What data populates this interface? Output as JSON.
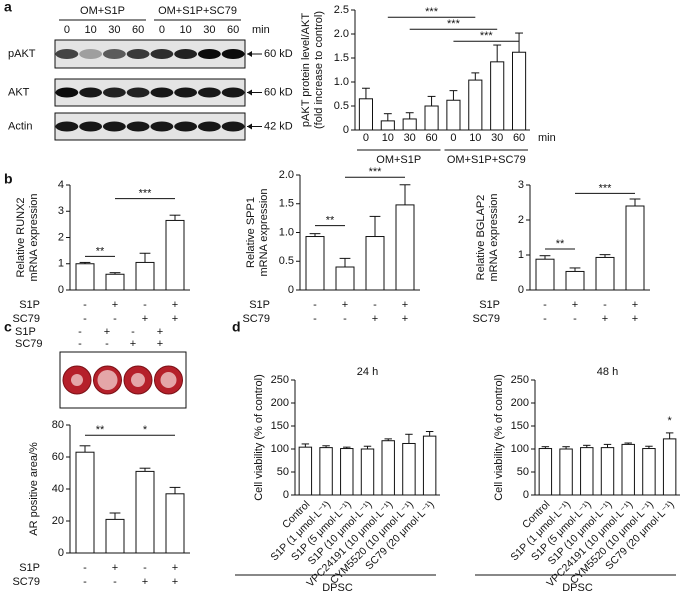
{
  "panel_labels": [
    "a",
    "b",
    "c",
    "d"
  ],
  "blot": {
    "groups": [
      "OM+S1P",
      "OM+S1P+SC79"
    ],
    "times": [
      "0",
      "10",
      "30",
      "60",
      "0",
      "10",
      "30",
      "60"
    ],
    "time_unit": "min",
    "rows": [
      {
        "name": "pAKT",
        "size": "60 kD"
      },
      {
        "name": "AKT",
        "size": "60 kD"
      },
      {
        "name": "Actin",
        "size": "42 kD"
      }
    ]
  },
  "stain": {
    "rows": [
      {
        "name": "S1P",
        "signs": [
          "-",
          "+",
          "-",
          "+"
        ]
      },
      {
        "name": "SC79",
        "signs": [
          "-",
          "-",
          "+",
          "+"
        ]
      }
    ]
  },
  "chart_data": [
    {
      "type": "bar",
      "ylabel": [
        "pAKT protein level/AKT",
        "(fold increase to control)"
      ],
      "categories": [
        "0",
        "10",
        "30",
        "60",
        "0",
        "10",
        "30",
        "60"
      ],
      "xlabel": "min",
      "groups": [
        "OM+S1P",
        "OM+S1P+SC79"
      ],
      "values": [
        0.65,
        0.19,
        0.23,
        0.5,
        0.62,
        1.04,
        1.42,
        1.62
      ],
      "errors": [
        0.22,
        0.15,
        0.13,
        0.2,
        0.2,
        0.15,
        0.35,
        0.4
      ],
      "color": "#ffffff",
      "ylim": [
        0,
        2.5
      ],
      "yticks": [
        0,
        0.5,
        {
          "value": 1,
          "label": "1.0"
        },
        1.5,
        {
          "value": 2,
          "label": "2.0"
        },
        2.5
      ],
      "significance": [
        "***",
        "***",
        "***"
      ]
    },
    {
      "type": "bar",
      "ylabel": [
        "Relative RUNX2",
        "mRNA expression"
      ],
      "conditions": [
        {
          "name": "S1P",
          "signs": [
            "-",
            "+",
            "-",
            "+"
          ]
        },
        {
          "name": "SC79",
          "signs": [
            "-",
            "-",
            "+",
            "+"
          ]
        }
      ],
      "values": [
        1.0,
        0.6,
        1.05,
        2.65
      ],
      "errors": [
        0.05,
        0.06,
        0.35,
        0.2
      ],
      "color": "#ffffff",
      "ylim": [
        0,
        4
      ],
      "yticks": [
        0,
        1,
        2,
        3,
        4
      ],
      "significance": [
        "**",
        "***"
      ]
    },
    {
      "type": "bar",
      "ylabel": [
        "Relative SPP1",
        "mRNA expression"
      ],
      "conditions": [
        {
          "name": "S1P",
          "signs": [
            "-",
            "+",
            "-",
            "+"
          ]
        },
        {
          "name": "SC79",
          "signs": [
            "-",
            "-",
            "+",
            "+"
          ]
        }
      ],
      "values": [
        0.93,
        0.4,
        0.93,
        1.48
      ],
      "errors": [
        0.05,
        0.15,
        0.35,
        0.35
      ],
      "color": "#ffffff",
      "ylim": [
        0,
        2
      ],
      "yticks": [
        0,
        0.5,
        {
          "value": 1,
          "label": "1.0"
        },
        1.5,
        {
          "value": 2,
          "label": "2.0"
        }
      ],
      "significance": [
        "**",
        "***"
      ]
    },
    {
      "type": "bar",
      "ylabel": [
        "Relative BGLAP2",
        "mRNA expression"
      ],
      "conditions": [
        {
          "name": "S1P",
          "signs": [
            "-",
            "+",
            "-",
            "+"
          ]
        },
        {
          "name": "SC79",
          "signs": [
            "-",
            "-",
            "+",
            "+"
          ]
        }
      ],
      "values": [
        0.88,
        0.53,
        0.93,
        2.4
      ],
      "errors": [
        0.1,
        0.1,
        0.08,
        0.2
      ],
      "color": "#ffffff",
      "ylim": [
        0,
        3
      ],
      "yticks": [
        0,
        1,
        2,
        3
      ],
      "significance": [
        "**",
        "***"
      ]
    },
    {
      "type": "bar",
      "ylabel": [
        "AR positive area/%"
      ],
      "conditions": [
        {
          "name": "S1P",
          "signs": [
            "-",
            "+",
            "-",
            "+"
          ]
        },
        {
          "name": "SC79",
          "signs": [
            "-",
            "-",
            "+",
            "+"
          ]
        }
      ],
      "values": [
        63,
        21,
        51,
        37
      ],
      "errors": [
        4,
        4,
        2,
        4
      ],
      "color": "#ffffff",
      "ylim": [
        0,
        80
      ],
      "yticks": [
        0,
        20,
        40,
        60,
        80
      ],
      "significance": [
        "**",
        "*"
      ]
    },
    {
      "type": "bar",
      "title": "24 h",
      "ylabel": [
        "Cell viability (% of control)"
      ],
      "group": "DPSC",
      "categories": [
        "Control",
        "S1P (1 μmol·L⁻¹)",
        "S1P (5 μmol·L⁻¹)",
        "S1P (10 μmol·L⁻¹)",
        "VPC24191 (10 μmol·L⁻¹)",
        "CYM5520 (10 μmol·L⁻¹)",
        "SC79 (20 μmol·L⁻¹)"
      ],
      "values": [
        104,
        103,
        101,
        100,
        118,
        112,
        128
      ],
      "errors": [
        7,
        4,
        3,
        6,
        4,
        20,
        10
      ],
      "color": "#ffffff",
      "ylim": [
        0,
        250
      ],
      "yticks": [
        0,
        50,
        100,
        150,
        200,
        250
      ],
      "significance": []
    },
    {
      "type": "bar",
      "title": "48 h",
      "ylabel": [
        "Cell viability (% of control)"
      ],
      "group": "DPSC",
      "categories": [
        "Control",
        "S1P (1 μmol·L⁻¹)",
        "S1P (5 μmol·L⁻¹)",
        "S1P (10 μmol·L⁻¹)",
        "VPC24191 (10 μmol·L⁻¹)",
        "CYM5520 (10 μmol·L⁻¹)",
        "SC79 (20 μmol·L⁻¹)"
      ],
      "values": [
        101,
        100,
        103,
        103,
        110,
        101,
        122
      ],
      "errors": [
        4,
        5,
        5,
        7,
        3,
        5,
        13
      ],
      "color": "#ffffff",
      "ylim": [
        0,
        250
      ],
      "yticks": [
        0,
        50,
        100,
        150,
        200,
        250
      ],
      "significance": [
        "*"
      ]
    }
  ]
}
